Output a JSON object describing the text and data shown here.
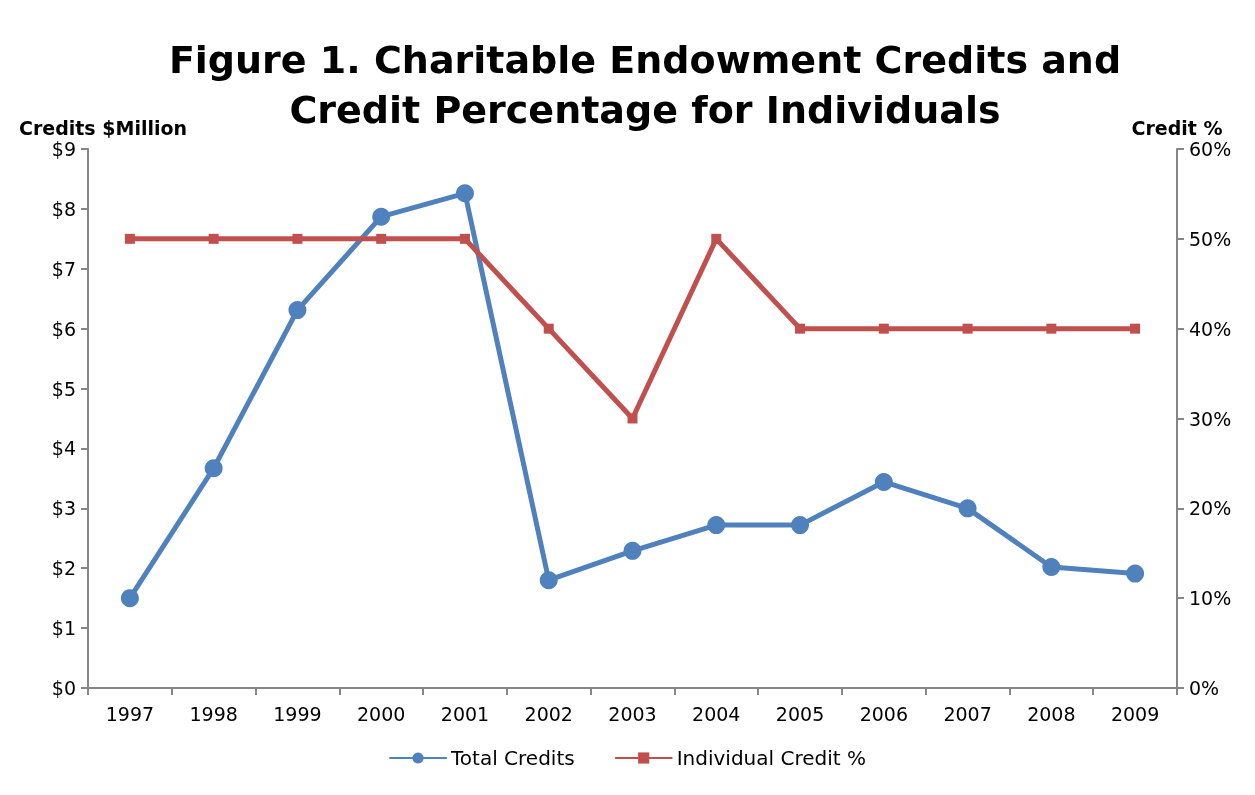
{
  "chart_data": {
    "type": "line",
    "title": "Figure 1. Charitable Endowment Credits and\nCredit Percentage for Individuals",
    "ylabel": "Credits $Million",
    "y2label": "Credit %",
    "categories": [
      "1997",
      "1998",
      "1999",
      "2000",
      "2001",
      "2002",
      "2003",
      "2004",
      "2005",
      "2006",
      "2007",
      "2008",
      "2009"
    ],
    "series": [
      {
        "name": "Total Credits",
        "color": "#4f81bd",
        "marker": "circle",
        "values": [
          1.5,
          3.67,
          6.31,
          7.87,
          8.26,
          1.8,
          2.29,
          2.72,
          2.72,
          3.44,
          3.0,
          2.02,
          1.91
        ]
      },
      {
        "name": "Individual Credit %",
        "color": "#c0504d",
        "marker": "square",
        "axis": "y2",
        "values": [
          50,
          50,
          50,
          50,
          50,
          40,
          30,
          50,
          40,
          40,
          40,
          40,
          40
        ]
      }
    ],
    "ylim": [
      0,
      9
    ],
    "yticks": [
      {
        "value": 0,
        "label": "$0"
      },
      {
        "value": 1,
        "label": "$1"
      },
      {
        "value": 2,
        "label": "$2"
      },
      {
        "value": 3,
        "label": "$3"
      },
      {
        "value": 4,
        "label": "$4"
      },
      {
        "value": 5,
        "label": "$5"
      },
      {
        "value": 6,
        "label": "$6"
      },
      {
        "value": 7,
        "label": "$7"
      },
      {
        "value": 8,
        "label": "$8"
      },
      {
        "value": 9,
        "label": "$9"
      }
    ],
    "y2lim": [
      0,
      60
    ],
    "y2ticks": [
      {
        "value": 0,
        "label": "0%"
      },
      {
        "value": 10,
        "label": "10%"
      },
      {
        "value": 20,
        "label": "20%"
      },
      {
        "value": 30,
        "label": "30%"
      },
      {
        "value": 40,
        "label": "40%"
      },
      {
        "value": 50,
        "label": "50%"
      },
      {
        "value": 60,
        "label": "60%"
      }
    ],
    "grid": false,
    "legend": "bottom",
    "line_style": "solid"
  }
}
